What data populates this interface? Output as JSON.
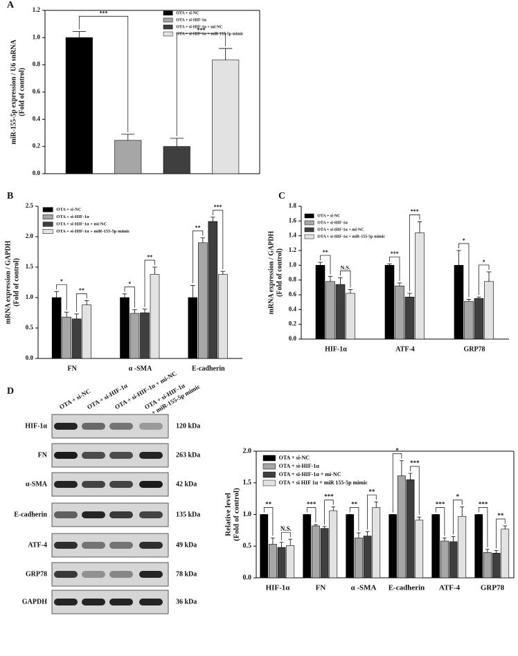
{
  "chart_data": [
    {
      "type": "bar",
      "panel_label": "A",
      "frame": true,
      "ylabel": [
        "miR-155-5p expression / U6 snRNA",
        "(Fold of control)"
      ],
      "categories": [
        null
      ],
      "ylim": [
        0,
        1.2
      ],
      "yticks": [
        {
          "value": 0,
          "label": "0.0"
        },
        0.2,
        0.4,
        0.6,
        0.8,
        {
          "value": 1,
          "label": "1.0"
        },
        1.2
      ],
      "series": [
        {
          "name": "OTA + si-NC",
          "color": "#000000",
          "values": [
            1.0
          ],
          "errors": [
            0.045
          ]
        },
        {
          "name": "OTA + si-HIF-1α",
          "color": "#a6a6a6",
          "values": [
            0.245
          ],
          "errors": [
            0.045
          ]
        },
        {
          "name": "OTA + si-HIF-1α + mi-NC",
          "color": "#3f3f3f",
          "values": [
            0.2
          ],
          "errors": [
            0.06
          ]
        },
        {
          "name": "OTA + si-HIF-1α + miR 155-5p mimic",
          "color": "#e2e2e2",
          "values": [
            0.835
          ],
          "errors": [
            0.085
          ]
        }
      ],
      "annotations": [
        {
          "text": "***",
          "category": 0,
          "bars": [
            0,
            1
          ]
        },
        {
          "text": "***",
          "category": 0,
          "bars": [
            2,
            3
          ]
        }
      ]
    },
    {
      "type": "bar",
      "panel_label": "B",
      "frame": false,
      "ylabel": [
        "mRNA expression / GAPDH",
        "(Fold of control)"
      ],
      "categories": [
        "FN",
        "α -SMA",
        "E-cadherin"
      ],
      "ylim": [
        0,
        2.5
      ],
      "yticks": [
        {
          "value": 0,
          "label": "0.0"
        },
        0.5,
        {
          "value": 1,
          "label": "1.0"
        },
        1.5,
        {
          "value": 2,
          "label": "2.0"
        },
        2.5
      ],
      "series": [
        {
          "name": "OTA + si-NC",
          "color": "#000000",
          "values": [
            1.0,
            1.0,
            1.0
          ],
          "errors": [
            0.1,
            0.06,
            0.2
          ]
        },
        {
          "name": "OTA + si-HIF-1α",
          "color": "#a6a6a6",
          "values": [
            0.68,
            0.74,
            1.9
          ],
          "errors": [
            0.08,
            0.06,
            0.08
          ]
        },
        {
          "name": "OTA + si-HIF-1α + mi-NC",
          "color": "#3f3f3f",
          "values": [
            0.65,
            0.75,
            2.25
          ],
          "errors": [
            0.08,
            0.06,
            0.07
          ]
        },
        {
          "name": "OTA + si-HIF-1α + miR-155-5p mimic",
          "color": "#e2e2e2",
          "values": [
            0.88,
            1.38,
            1.38
          ],
          "errors": [
            0.07,
            0.12,
            0.05
          ]
        }
      ],
      "annotations": [
        {
          "text": "*",
          "category": 0,
          "bars": [
            0,
            1
          ]
        },
        {
          "text": "**",
          "category": 0,
          "bars": [
            2,
            3
          ]
        },
        {
          "text": "*",
          "category": 1,
          "bars": [
            0,
            1
          ]
        },
        {
          "text": "**",
          "category": 1,
          "bars": [
            2,
            3
          ]
        },
        {
          "text": "**",
          "category": 2,
          "bars": [
            0,
            1
          ]
        },
        {
          "text": "***",
          "category": 2,
          "bars": [
            2,
            3
          ]
        }
      ]
    },
    {
      "type": "bar",
      "panel_label": "C",
      "frame": false,
      "ylabel": [
        "mRNA expression / GAPDH",
        "(Fold of control)"
      ],
      "categories": [
        "HIF-1α",
        "ATF-4",
        "GRP78"
      ],
      "ylim": [
        0,
        1.8
      ],
      "yticks": [
        {
          "value": 0,
          "label": "0.0"
        },
        0.2,
        0.4,
        0.6,
        0.8,
        {
          "value": 1,
          "label": "1.0"
        },
        1.2,
        1.4,
        1.6,
        1.8
      ],
      "series": [
        {
          "name": "OTA + si-NC",
          "color": "#000000",
          "values": [
            1.0,
            1.0,
            1.0
          ],
          "errors": [
            0.04,
            0.02,
            0.2
          ]
        },
        {
          "name": "OTA + si-HIF-1α",
          "color": "#a6a6a6",
          "values": [
            0.78,
            0.72,
            0.51
          ],
          "errors": [
            0.07,
            0.04,
            0.03
          ]
        },
        {
          "name": "OTA + si-HIF-1α + mi-NC",
          "color": "#3f3f3f",
          "values": [
            0.74,
            0.57,
            0.55
          ],
          "errors": [
            0.09,
            0.05,
            0.02
          ]
        },
        {
          "name": "OTA + si-HIF-1α + miR-155-5p mimic",
          "color": "#e2e2e2",
          "values": [
            0.62,
            1.44,
            0.78
          ],
          "errors": [
            0.05,
            0.15,
            0.13
          ]
        }
      ],
      "annotations": [
        {
          "text": "**",
          "category": 0,
          "bars": [
            0,
            1
          ]
        },
        {
          "text": "N.S.",
          "category": 0,
          "bars": [
            2,
            3
          ]
        },
        {
          "text": "***",
          "category": 1,
          "bars": [
            0,
            1
          ]
        },
        {
          "text": "***",
          "category": 1,
          "bars": [
            2,
            3
          ]
        },
        {
          "text": "*",
          "category": 2,
          "bars": [
            0,
            1
          ]
        },
        {
          "text": "*",
          "category": 2,
          "bars": [
            2,
            3
          ]
        }
      ]
    },
    {
      "type": "bar",
      "frame": true,
      "ylabel": [
        "Relative level",
        "(Fold of control)"
      ],
      "categories": [
        "HIF-1α",
        "FN",
        "α -SMA",
        "E-cadherin",
        "ATF-4",
        "GRP78"
      ],
      "ylim": [
        0,
        2.0
      ],
      "yticks": [
        {
          "value": 0,
          "label": "0.0"
        },
        0.5,
        {
          "value": 1,
          "label": "1.0"
        },
        1.5,
        {
          "value": 2,
          "label": "2.0"
        }
      ],
      "series": [
        {
          "name": "OTA + si-NC",
          "color": "#000000",
          "values": [
            1.0,
            1.0,
            1.0,
            1.0,
            1.0,
            1.0
          ],
          "errors": [
            0,
            0,
            0,
            0,
            0,
            0
          ]
        },
        {
          "name": "OTA + si-HIF-1α",
          "color": "#a6a6a6",
          "values": [
            0.53,
            0.82,
            0.63,
            1.61,
            0.58,
            0.4
          ],
          "errors": [
            0.1,
            0.02,
            0.08,
            0.24,
            0.05,
            0.05
          ]
        },
        {
          "name": "OTA + si-HIF-1α + mi-NC",
          "color": "#3f3f3f",
          "values": [
            0.48,
            0.78,
            0.66,
            1.55,
            0.57,
            0.39
          ],
          "errors": [
            0.08,
            0.03,
            0.07,
            0.1,
            0.08,
            0.04
          ]
        },
        {
          "name": "OTA + si HIF 1α + miR 155-5p mimic",
          "color": "#e2e2e2",
          "values": [
            0.51,
            1.06,
            1.11,
            0.91,
            0.97,
            0.77
          ],
          "errors": [
            0.1,
            0.06,
            0.09,
            0.05,
            0.15,
            0.05
          ]
        }
      ],
      "annotations": [
        {
          "text": "**",
          "category": 0,
          "bars": [
            0,
            1
          ]
        },
        {
          "text": "N.S.",
          "category": 0,
          "bars": [
            2,
            3
          ]
        },
        {
          "text": "***",
          "category": 1,
          "bars": [
            0,
            1
          ]
        },
        {
          "text": "***",
          "category": 1,
          "bars": [
            2,
            3
          ]
        },
        {
          "text": "**",
          "category": 2,
          "bars": [
            0,
            1
          ]
        },
        {
          "text": "**",
          "category": 2,
          "bars": [
            2,
            3
          ]
        },
        {
          "text": "*",
          "category": 3,
          "bars": [
            0,
            1
          ]
        },
        {
          "text": "***",
          "category": 3,
          "bars": [
            2,
            3
          ]
        },
        {
          "text": "***",
          "category": 4,
          "bars": [
            0,
            1
          ]
        },
        {
          "text": "*",
          "category": 4,
          "bars": [
            2,
            3
          ]
        },
        {
          "text": "***",
          "category": 5,
          "bars": [
            0,
            1
          ]
        },
        {
          "text": "**",
          "category": 5,
          "bars": [
            2,
            3
          ]
        }
      ]
    }
  ],
  "blot": {
    "panel_label": "D",
    "lanes": [
      [
        "OTA + si-NC"
      ],
      [
        "OTA + si-HIF-1α"
      ],
      [
        "OTA + si-HIF-1α + mi-NC"
      ],
      [
        "OTA + si-HIF-1α",
        "+ miR-155-5p mimic"
      ]
    ],
    "rows": [
      {
        "protein": "HIF-1α",
        "size": "120 kDa"
      },
      {
        "protein": "FN",
        "size": "263 kDa"
      },
      {
        "protein": "α-SMA",
        "size": "42 kDa"
      },
      {
        "protein": "E-cadherin",
        "size": "135 kDa"
      },
      {
        "protein": "ATF-4",
        "size": "49 kDa"
      },
      {
        "protein": "GRP78",
        "size": "78 kDa"
      },
      {
        "protein": "GAPDH",
        "size": "36 kDa"
      }
    ]
  }
}
